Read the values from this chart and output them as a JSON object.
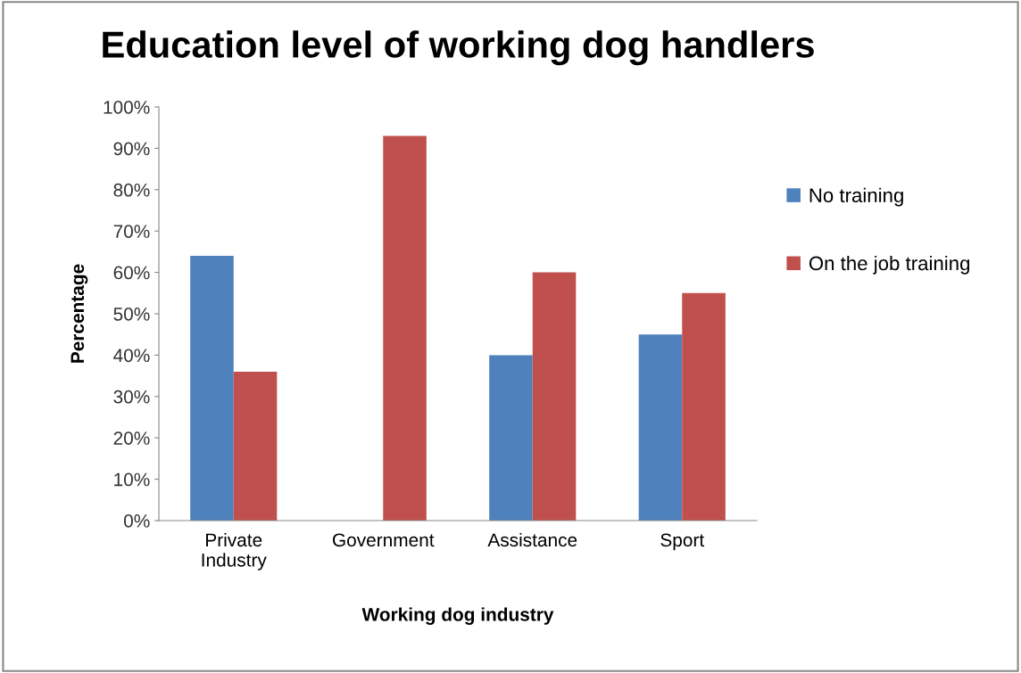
{
  "chart_data": {
    "type": "bar",
    "title": "Education level of working dog handlers",
    "xlabel": "Working dog industry",
    "ylabel": "Percentage",
    "categories": [
      "Private\nIndustry",
      "Government",
      "Assistance",
      "Sport"
    ],
    "series": [
      {
        "name": "No training",
        "color": "#4f81bd",
        "values": [
          64,
          0,
          40,
          45
        ]
      },
      {
        "name": "On the job training",
        "color": "#c0504d",
        "values": [
          36,
          93,
          60,
          55
        ]
      }
    ],
    "ylim": [
      0,
      100
    ],
    "yticks": [
      {
        "value": 0,
        "label": "0%"
      },
      {
        "value": 10,
        "label": "10%"
      },
      {
        "value": 20,
        "label": "20%"
      },
      {
        "value": 30,
        "label": "30%"
      },
      {
        "value": 40,
        "label": "40%"
      },
      {
        "value": 50,
        "label": "50%"
      },
      {
        "value": 60,
        "label": "60%"
      },
      {
        "value": 70,
        "label": "70%"
      },
      {
        "value": 80,
        "label": "80%"
      },
      {
        "value": 90,
        "label": "90%"
      },
      {
        "value": 100,
        "label": "100%"
      }
    ],
    "legend": "right",
    "grid": false
  }
}
